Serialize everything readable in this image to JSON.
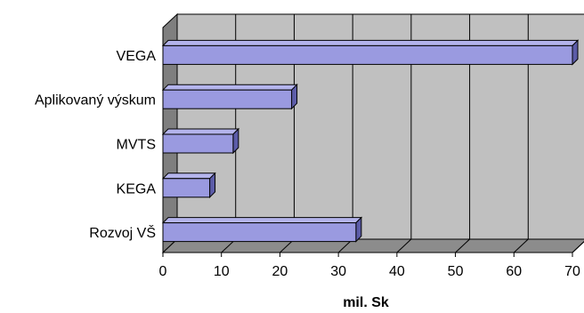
{
  "chart_data": {
    "type": "bar",
    "orientation": "horizontal",
    "style": "3d",
    "categories": [
      "VEGA",
      "Aplikovaný výskum",
      "MVTS",
      "KEGA",
      "Rozvoj VŠ"
    ],
    "values": [
      70,
      22,
      12,
      8,
      33
    ],
    "xlabel": "mil. Sk",
    "xlim": [
      0,
      70
    ],
    "xticks": [
      "0",
      "10",
      "20",
      "30",
      "40",
      "50",
      "60",
      "70"
    ],
    "grid": true,
    "legend": "none",
    "colors": {
      "bar_front": "#9A9AE0",
      "bar_top": "#B4B4EC",
      "bar_side": "#5C5CA8",
      "back_wall": "#C0C0C0",
      "side_wall": "#7F7F7F",
      "floor": "#8C8C8C",
      "grid": "#000000"
    }
  }
}
